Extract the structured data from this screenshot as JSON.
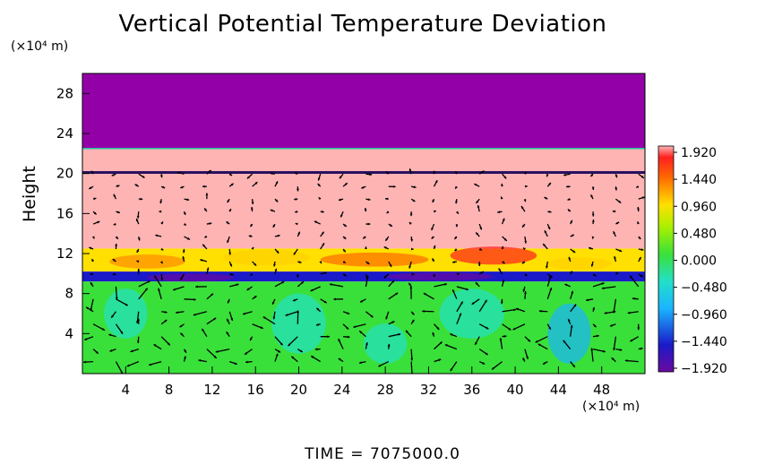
{
  "chart_data": {
    "type": "heatmap",
    "title": "Vertical Potential Temperature Deviation",
    "ylabel": "Height",
    "y_unit": "(×10⁴ m)",
    "x_unit": "(×10⁴ m)",
    "xlim": [
      0,
      52
    ],
    "ylim": [
      0,
      30
    ],
    "x_ticks": [
      4,
      8,
      12,
      16,
      20,
      24,
      28,
      32,
      36,
      40,
      44,
      48
    ],
    "y_ticks": [
      4,
      8,
      12,
      16,
      20,
      24,
      28
    ],
    "colorbar": {
      "ticks": [
        "1.920",
        "1.440",
        "0.960",
        "0.480",
        "0.000",
        "−0.480",
        "−0.960",
        "−1.440",
        "−1.920"
      ],
      "range": [
        -1.92,
        1.92
      ]
    },
    "layers": [
      {
        "y_from": 22.5,
        "y_to": 30,
        "value": -2.1
      },
      {
        "y_from": 12.5,
        "y_to": 22.5,
        "value": 2.0
      },
      {
        "y_from": 10.2,
        "y_to": 12.5,
        "value": 1.2
      },
      {
        "y_from": 9.2,
        "y_to": 10.2,
        "value": -1.6
      },
      {
        "y_from": 0,
        "y_to": 9.2,
        "value": 0.1
      }
    ],
    "footer": "TIME  =  7075000.0",
    "colors": {
      "top_layer": "#9400a8",
      "upper_layer": "#ffb4b4",
      "warm_band": "#ff3a1a",
      "cold_band": "#1a2fd0",
      "lower_layer": "#3ae03a",
      "vectors": "#000000"
    }
  }
}
